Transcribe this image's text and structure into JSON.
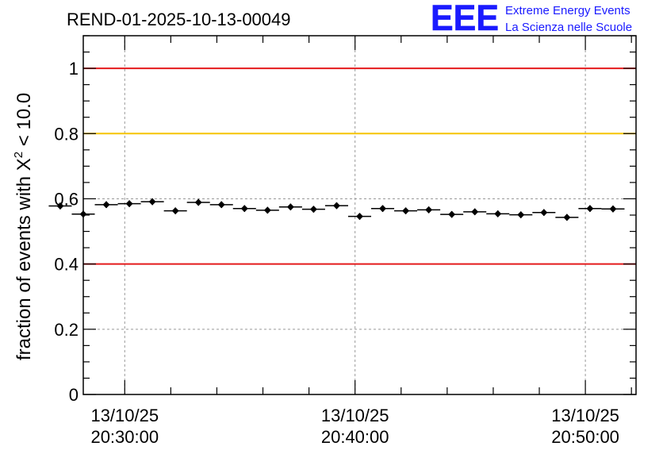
{
  "chart_data": {
    "type": "scatter",
    "title": "REND-01-2025-10-13-00049",
    "xlabel": "",
    "ylabel": "fraction of events with X² < 10.0",
    "ylabel_parts": {
      "prefix": "fraction of events with X",
      "superscript": "2",
      "suffix": " < 10.0"
    },
    "ylim": [
      0,
      1.1
    ],
    "xlim_minutes": [
      -1.8,
      22.2
    ],
    "grid": true,
    "y_ticks": [
      {
        "value": 0,
        "label": "0"
      },
      {
        "value": 0.2,
        "label": "0.2"
      },
      {
        "value": 0.4,
        "label": "0.4"
      },
      {
        "value": 0.6,
        "label": "0.6"
      },
      {
        "value": 0.8,
        "label": "0.8"
      },
      {
        "value": 1,
        "label": "1"
      }
    ],
    "x_ticks": [
      {
        "minute": 0,
        "date": "13/10/25",
        "time": "20:30:00"
      },
      {
        "minute": 10,
        "date": "13/10/25",
        "time": "20:40:00"
      },
      {
        "minute": 20,
        "date": "13/10/25",
        "time": "20:50:00"
      }
    ],
    "bin_width_minutes": 1,
    "reference_lines": [
      {
        "value": 1.0,
        "color": "#e41a1c"
      },
      {
        "value": 0.8,
        "color": "#f5c400"
      },
      {
        "value": 0.4,
        "color": "#e41a1c"
      }
    ],
    "series": [
      {
        "name": "fraction",
        "x_minutes": [
          -3,
          -2,
          -1,
          0,
          1,
          2,
          3,
          4,
          5,
          6,
          7,
          8,
          9,
          10,
          11,
          12,
          13,
          14,
          15,
          16,
          17,
          18,
          19,
          20,
          21
        ],
        "values": [
          0.578,
          0.553,
          0.582,
          0.585,
          0.591,
          0.563,
          0.589,
          0.582,
          0.57,
          0.565,
          0.575,
          0.568,
          0.579,
          0.546,
          0.57,
          0.563,
          0.566,
          0.552,
          0.56,
          0.554,
          0.551,
          0.558,
          0.543,
          0.57,
          0.569
        ],
        "errors": [
          0.01,
          0.01,
          0.01,
          0.01,
          0.01,
          0.01,
          0.01,
          0.01,
          0.01,
          0.01,
          0.01,
          0.01,
          0.01,
          0.01,
          0.01,
          0.01,
          0.01,
          0.01,
          0.01,
          0.01,
          0.01,
          0.01,
          0.01,
          0.01,
          0.01
        ],
        "x_minutes_note": "first point drawn is at -2.8 min; points are bin-centered"
      }
    ],
    "series_x": [
      -2.8,
      -1.8,
      -0.8,
      0.2,
      1.2,
      2.2,
      3.2,
      4.2,
      5.2,
      6.2,
      7.2,
      8.2,
      9.2,
      10.2,
      11.2,
      12.2,
      13.2,
      14.2,
      15.2,
      16.2,
      17.2,
      18.2,
      19.2,
      20.2,
      21.2
    ],
    "colors": {
      "marker": "#000000",
      "grid": "#999999"
    }
  },
  "logo": {
    "mark": "EEE",
    "line1": "Extreme Energy Events",
    "line2": "La Scienza nelle Scuole",
    "color": "#1a1aff"
  }
}
